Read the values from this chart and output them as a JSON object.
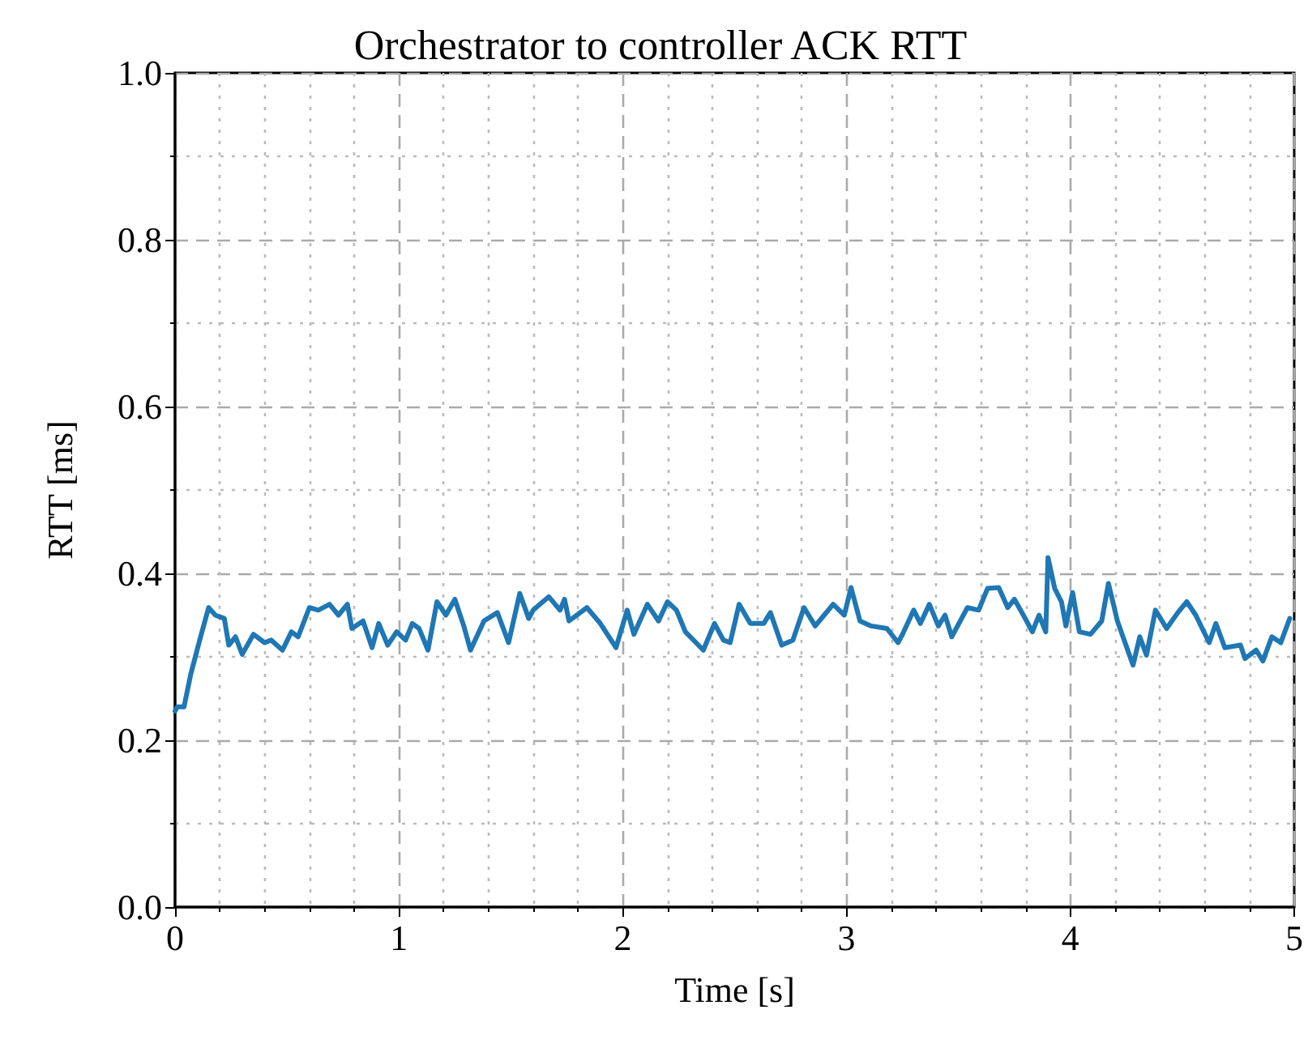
{
  "chart_data": {
    "type": "line",
    "title": "Orchestrator to controller ACK RTT",
    "xlabel": "Time [s]",
    "ylabel": "RTT [ms]",
    "xlim": [
      0,
      5
    ],
    "xticks": [
      0,
      1,
      2,
      3,
      4,
      5
    ],
    "ylim": [
      0,
      1
    ],
    "yticks": [
      {
        "value": 0,
        "label": "0.0"
      },
      0.2,
      0.4,
      0.6,
      0.8,
      {
        "value": 1,
        "label": "1.0"
      }
    ],
    "grid": true,
    "marker": "none",
    "line_style": "solid",
    "series": [
      {
        "color": "#1f77b4",
        "x": [
          0,
          0.01,
          0.04,
          0.07,
          0.11,
          0.15,
          0.18,
          0.22,
          0.24,
          0.27,
          0.3,
          0.35,
          0.4,
          0.43,
          0.48,
          0.52,
          0.55,
          0.6,
          0.64,
          0.69,
          0.73,
          0.77,
          0.79,
          0.84,
          0.88,
          0.91,
          0.95,
          0.99,
          1.03,
          1.06,
          1.09,
          1.13,
          1.17,
          1.21,
          1.25,
          1.29,
          1.32,
          1.38,
          1.44,
          1.49,
          1.54,
          1.58,
          1.6,
          1.67,
          1.72,
          1.74,
          1.76,
          1.84,
          1.9,
          1.97,
          2.02,
          2.05,
          2.11,
          2.16,
          2.2,
          2.24,
          2.28,
          2.36,
          2.41,
          2.45,
          2.48,
          2.52,
          2.57,
          2.63,
          2.66,
          2.71,
          2.76,
          2.81,
          2.86,
          2.9,
          2.94,
          2.99,
          3.02,
          3.06,
          3.11,
          3.18,
          3.23,
          3.25,
          3.3,
          3.33,
          3.37,
          3.41,
          3.44,
          3.47,
          3.54,
          3.59,
          3.63,
          3.68,
          3.72,
          3.75,
          3.79,
          3.83,
          3.86,
          3.89,
          3.9,
          3.93,
          3.96,
          3.98,
          4.01,
          4.04,
          4.09,
          4.14,
          4.17,
          4.21,
          4.26,
          4.28,
          4.31,
          4.34,
          4.38,
          4.43,
          4.48,
          4.52,
          4.56,
          4.62,
          4.65,
          4.69,
          4.76,
          4.78,
          4.83,
          4.86,
          4.9,
          4.94,
          4.98
        ],
        "values": [
          0.235,
          0.24,
          0.24,
          0.279,
          0.32,
          0.359,
          0.35,
          0.346,
          0.314,
          0.324,
          0.303,
          0.327,
          0.317,
          0.32,
          0.308,
          0.33,
          0.324,
          0.359,
          0.356,
          0.363,
          0.35,
          0.363,
          0.334,
          0.343,
          0.311,
          0.34,
          0.314,
          0.33,
          0.32,
          0.34,
          0.334,
          0.308,
          0.366,
          0.35,
          0.369,
          0.337,
          0.308,
          0.343,
          0.353,
          0.317,
          0.376,
          0.346,
          0.356,
          0.372,
          0.356,
          0.369,
          0.343,
          0.359,
          0.34,
          0.311,
          0.356,
          0.327,
          0.363,
          0.343,
          0.366,
          0.356,
          0.33,
          0.308,
          0.34,
          0.32,
          0.317,
          0.363,
          0.34,
          0.34,
          0.353,
          0.314,
          0.32,
          0.359,
          0.337,
          0.35,
          0.363,
          0.35,
          0.383,
          0.343,
          0.337,
          0.334,
          0.317,
          0.327,
          0.356,
          0.34,
          0.363,
          0.337,
          0.35,
          0.324,
          0.359,
          0.356,
          0.382,
          0.383,
          0.359,
          0.369,
          0.35,
          0.33,
          0.35,
          0.33,
          0.419,
          0.382,
          0.366,
          0.337,
          0.377,
          0.33,
          0.327,
          0.343,
          0.388,
          0.343,
          0.305,
          0.29,
          0.324,
          0.302,
          0.356,
          0.334,
          0.353,
          0.366,
          0.35,
          0.317,
          0.34,
          0.311,
          0.314,
          0.298,
          0.308,
          0.295,
          0.324,
          0.317,
          0.346
        ]
      }
    ]
  }
}
